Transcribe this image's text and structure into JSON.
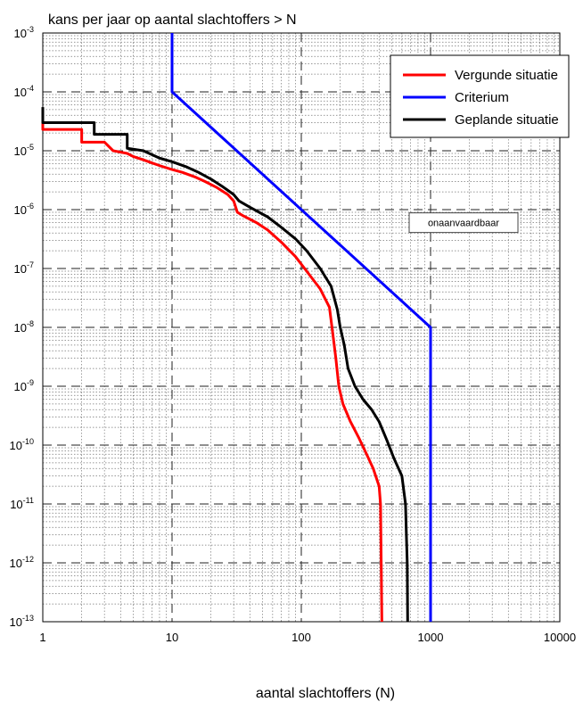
{
  "chart_data": {
    "type": "line",
    "title": "kans per jaar op aantal slachtoffers > N",
    "xlabel": "aantal slachtoffers (N)",
    "ylabel": "",
    "xscale": "log",
    "yscale": "log",
    "xlim": [
      1,
      10000
    ],
    "ylim": [
      1e-13,
      0.001
    ],
    "grid": true,
    "x_ticks": [
      {
        "value": 1,
        "label": "1"
      },
      {
        "value": 10,
        "label": "10"
      },
      {
        "value": 100,
        "label": "100"
      },
      {
        "value": 1000,
        "label": "1000"
      },
      {
        "value": 10000,
        "label": "10000"
      }
    ],
    "y_ticks": [
      {
        "value": 0.001,
        "base": "10",
        "exp": "-3"
      },
      {
        "value": 0.0001,
        "base": "10",
        "exp": "-4"
      },
      {
        "value": 1e-05,
        "base": "10",
        "exp": "-5"
      },
      {
        "value": 1e-06,
        "base": "10",
        "exp": "-6"
      },
      {
        "value": 1e-07,
        "base": "10",
        "exp": "-7"
      },
      {
        "value": 1e-08,
        "base": "10",
        "exp": "-8"
      },
      {
        "value": 1e-09,
        "base": "10",
        "exp": "-9"
      },
      {
        "value": 1e-10,
        "base": "10",
        "exp": "-10"
      },
      {
        "value": 1e-11,
        "base": "10",
        "exp": "-11"
      },
      {
        "value": 1e-12,
        "base": "10",
        "exp": "-12"
      },
      {
        "value": 1e-13,
        "base": "10",
        "exp": "-13"
      }
    ],
    "legend_position": "top-right",
    "annotation": {
      "text": "onaanvaardbaar",
      "x": 1800,
      "y": 6e-07
    },
    "series": [
      {
        "name": "Vergunde situatie",
        "color": "#ff0000",
        "points": [
          [
            1,
            4e-05
          ],
          [
            1,
            2.3e-05
          ],
          [
            2,
            2.3e-05
          ],
          [
            2,
            1.4e-05
          ],
          [
            3,
            1.4e-05
          ],
          [
            3.5,
            1e-05
          ],
          [
            4.5,
            9e-06
          ],
          [
            5,
            8e-06
          ],
          [
            6,
            7e-06
          ],
          [
            7,
            6.2e-06
          ],
          [
            8,
            5.6e-06
          ],
          [
            10,
            4.8e-06
          ],
          [
            12,
            4.3e-06
          ],
          [
            15,
            3.6e-06
          ],
          [
            18,
            3e-06
          ],
          [
            22,
            2.4e-06
          ],
          [
            27,
            1.8e-06
          ],
          [
            30,
            1.4e-06
          ],
          [
            32,
            9e-07
          ],
          [
            35,
            8e-07
          ],
          [
            45,
            6e-07
          ],
          [
            55,
            4.5e-07
          ],
          [
            70,
            2.8e-07
          ],
          [
            90,
            1.6e-07
          ],
          [
            110,
            9e-08
          ],
          [
            140,
            4.5e-08
          ],
          [
            165,
            2.2e-08
          ],
          [
            175,
            8e-09
          ],
          [
            185,
            3e-09
          ],
          [
            195,
            1e-09
          ],
          [
            210,
            5e-10
          ],
          [
            240,
            2.5e-10
          ],
          [
            280,
            1.3e-10
          ],
          [
            320,
            7e-11
          ],
          [
            360,
            4e-11
          ],
          [
            400,
            2e-11
          ],
          [
            410,
            1e-11
          ],
          [
            415,
            1e-12
          ],
          [
            420,
            1e-13
          ]
        ]
      },
      {
        "name": "Criterium",
        "color": "#0000ff",
        "points": [
          [
            10,
            0.001
          ],
          [
            10,
            0.0001
          ],
          [
            1000,
            1e-08
          ],
          [
            1000,
            1e-13
          ]
        ]
      },
      {
        "name": "Geplande situatie",
        "color": "#000000",
        "points": [
          [
            1,
            5.5e-05
          ],
          [
            1,
            3e-05
          ],
          [
            2.5,
            3e-05
          ],
          [
            2.5,
            1.9e-05
          ],
          [
            4.5,
            1.9e-05
          ],
          [
            4.5,
            1.1e-05
          ],
          [
            6,
            1e-05
          ],
          [
            8,
            7.5e-06
          ],
          [
            10,
            6.5e-06
          ],
          [
            13,
            5.3e-06
          ],
          [
            16,
            4.3e-06
          ],
          [
            20,
            3.3e-06
          ],
          [
            25,
            2.4e-06
          ],
          [
            30,
            1.8e-06
          ],
          [
            33,
            1.4e-06
          ],
          [
            40,
            1.1e-06
          ],
          [
            55,
            7.5e-07
          ],
          [
            70,
            5e-07
          ],
          [
            90,
            3.2e-07
          ],
          [
            110,
            2e-07
          ],
          [
            140,
            1e-07
          ],
          [
            170,
            5e-08
          ],
          [
            190,
            2e-08
          ],
          [
            200,
            1e-08
          ],
          [
            215,
            5e-09
          ],
          [
            230,
            2e-09
          ],
          [
            260,
            1e-09
          ],
          [
            300,
            6e-10
          ],
          [
            350,
            4e-10
          ],
          [
            400,
            2.5e-10
          ],
          [
            460,
            1.2e-10
          ],
          [
            520,
            6e-11
          ],
          [
            600,
            3e-11
          ],
          [
            640,
            1e-11
          ],
          [
            650,
            3e-12
          ],
          [
            660,
            1e-12
          ],
          [
            665,
            1e-13
          ]
        ]
      }
    ]
  }
}
